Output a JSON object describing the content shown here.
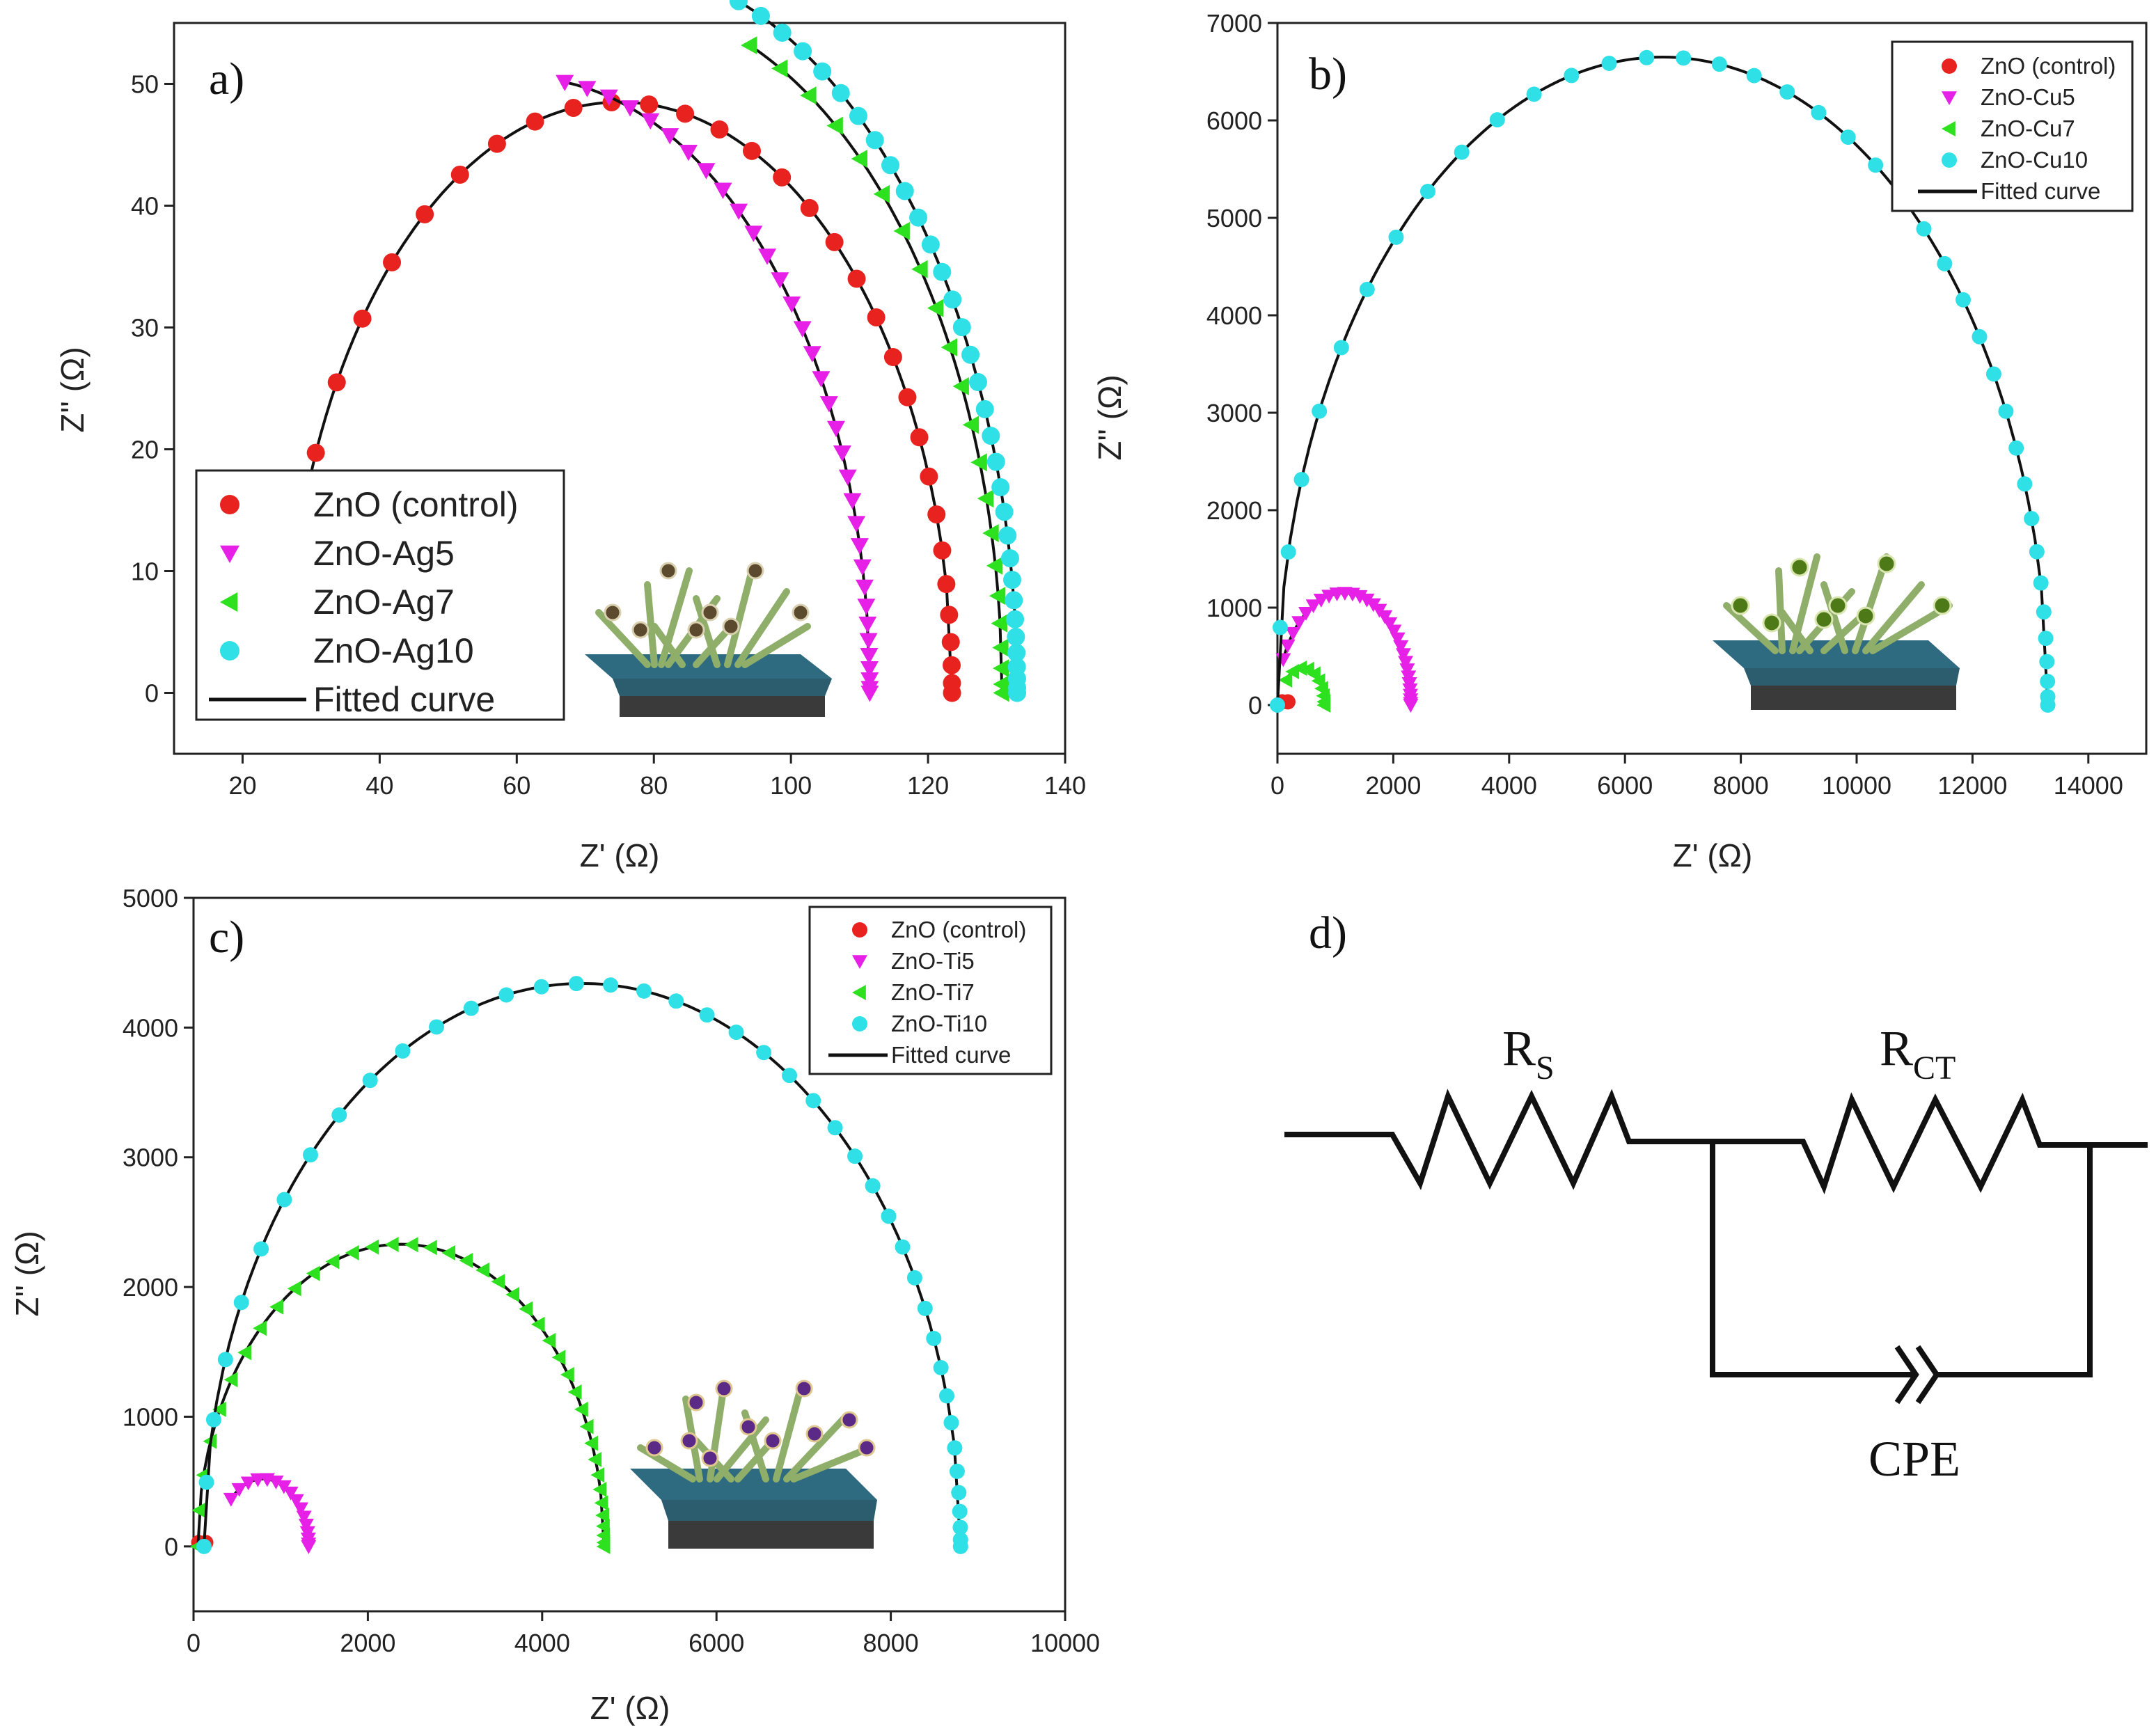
{
  "colors": {
    "control": "#e8231f",
    "x5": "#e620e6",
    "x7": "#2ee11f",
    "x10": "#2fe1e6",
    "fit": "#111111"
  },
  "chart_data": [
    {
      "type": "scatter",
      "panel_label": "a)",
      "xlabel": "Z' (Ω)",
      "ylabel": "Z'' (Ω)",
      "xlim": [
        10,
        140
      ],
      "ylim": [
        -5,
        55
      ],
      "xticks": [
        "20",
        "40",
        "60",
        "80",
        "100",
        "120",
        "140"
      ],
      "yticks": [
        "0",
        "10",
        "20",
        "30",
        "40",
        "50"
      ],
      "series": [
        {
          "name": "ZnO (control)",
          "marker": "circle",
          "color_key": "control",
          "center": 75,
          "radius": 48.5,
          "start": 26,
          "end": 123.5
        },
        {
          "name": "ZnO-Ag5",
          "marker": "tri-down",
          "color_key": "x5",
          "center": 61,
          "radius": 50.5,
          "start": 67,
          "end": 111.5
        },
        {
          "name": "ZnO-Ag7",
          "marker": "tri-left",
          "color_key": "x7",
          "center": 74,
          "radius": 56.8,
          "start": 94,
          "end": 130.8
        },
        {
          "name": "ZnO-Ag10",
          "marker": "circle",
          "color_key": "x10",
          "center": 73,
          "radius": 60.0,
          "start": 89,
          "end": 133.0
        }
      ],
      "legend": [
        "ZnO (control)",
        "ZnO-Ag5",
        "ZnO-Ag7",
        "ZnO-Ag10",
        "Fitted curve"
      ],
      "legend_position": "bottom-left"
    },
    {
      "type": "scatter",
      "panel_label": "b)",
      "xlabel": "Z' (Ω)",
      "ylabel": "Z'' (Ω)",
      "xlim": [
        0,
        15000
      ],
      "ylim": [
        -500,
        7000
      ],
      "xticks": [
        "0",
        "2000",
        "4000",
        "6000",
        "8000",
        "10000",
        "12000",
        "14000"
      ],
      "yticks": [
        "0",
        "1000",
        "2000",
        "3000",
        "4000",
        "5000",
        "6000",
        "7000"
      ],
      "series": [
        {
          "name": "ZnO (control)",
          "marker": "circle",
          "color_key": "control",
          "center": 130,
          "radius": 60,
          "start": 80,
          "end": 180
        },
        {
          "name": "ZnO-Cu5",
          "marker": "tri-down",
          "color_key": "x5",
          "center": 1150,
          "radius": 1150,
          "start": 100,
          "end": 2300
        },
        {
          "name": "ZnO-Cu7",
          "marker": "tri-left",
          "color_key": "x7",
          "center": 430,
          "radius": 380,
          "start": 150,
          "end": 810
        },
        {
          "name": "ZnO-Cu10",
          "marker": "circle",
          "color_key": "x10",
          "center": 6650,
          "radius": 6650,
          "start": 0,
          "end": 13300
        }
      ],
      "legend": [
        "ZnO (control)",
        "ZnO-Cu5",
        "ZnO-Cu7",
        "ZnO-Cu10",
        "Fitted curve"
      ],
      "legend_position": "top-right"
    },
    {
      "type": "scatter",
      "panel_label": "c)",
      "xlabel": "Z' (Ω)",
      "ylabel": "Z'' (Ω)",
      "xlim": [
        0,
        10000
      ],
      "ylim": [
        -500,
        5000
      ],
      "xticks": [
        "0",
        "2000",
        "4000",
        "6000",
        "8000",
        "10000"
      ],
      "yticks": [
        "0",
        "1000",
        "2000",
        "3000",
        "4000",
        "5000"
      ],
      "series": [
        {
          "name": "ZnO (control)",
          "marker": "circle",
          "color_key": "control",
          "center": 100,
          "radius": 50,
          "start": 60,
          "end": 140
        },
        {
          "name": "ZnO-Ti5",
          "marker": "tri-down",
          "color_key": "x5",
          "center": 800,
          "radius": 520,
          "start": 430,
          "end": 1320
        },
        {
          "name": "ZnO-Ti7",
          "marker": "tri-left",
          "color_key": "x7",
          "center": 2380,
          "radius": 2330,
          "start": 50,
          "end": 4710
        },
        {
          "name": "ZnO-Ti10",
          "marker": "circle",
          "color_key": "x10",
          "center": 4460,
          "radius": 4340,
          "start": 120,
          "end": 8800
        }
      ],
      "legend": [
        "ZnO (control)",
        "ZnO-Ti5",
        "ZnO-Ti7",
        "ZnO-Ti10",
        "Fitted curve"
      ],
      "legend_position": "top-right"
    }
  ],
  "circuit": {
    "panel_label": "d)",
    "rs_main": "R",
    "rs_sub": "S",
    "rct_main": "R",
    "rct_sub": "CT",
    "cpe": "CPE"
  }
}
